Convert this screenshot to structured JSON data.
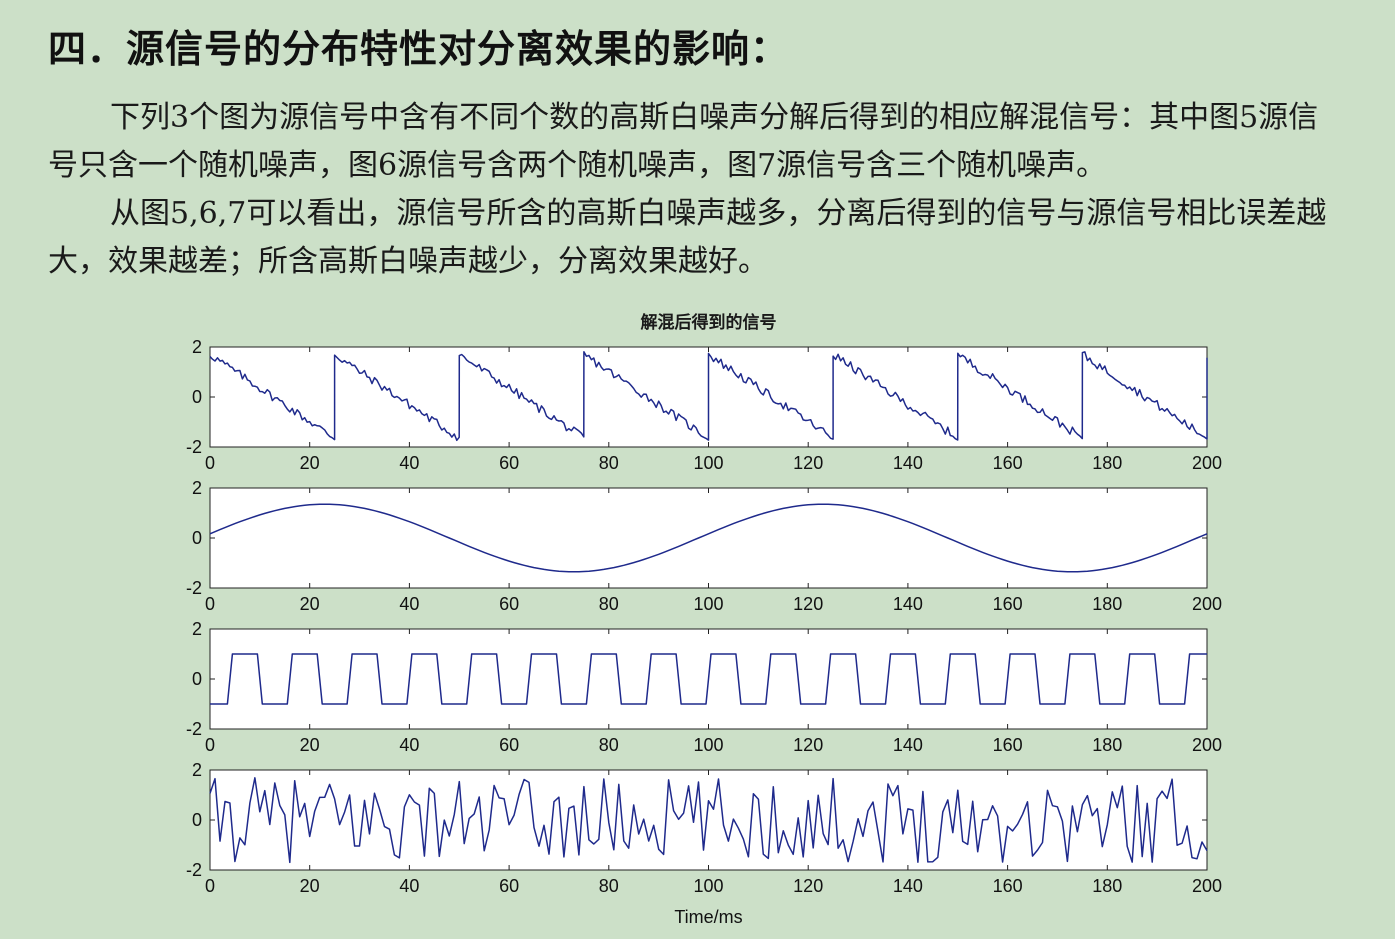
{
  "heading": "四．源信号的分布特性对分离效果的影响：",
  "paragraphs": [
    "下列3个图为源信号中含有不同个数的高斯白噪声分解后得到的相应解混信号：其中图5源信号只含一个随机噪声，图6源信号含两个随机噪声，图7源信号含三个随机噪声。",
    "从图5,6,7可以看出，源信号所含的高斯白噪声越多，分离后得到的信号与源信号相比误差越大，效果越差；所含高斯白噪声越少，分离效果越好。"
  ],
  "colors": {
    "page_background": "#cce0c8",
    "plot_background": "#ffffff",
    "line": "#1f2a8c"
  },
  "chart_data": {
    "type": "line",
    "title": "解混后得到的信号",
    "xlabel": "Time/ms",
    "subplots": [
      {
        "signal": "sawtooth",
        "xlim": [
          0,
          200
        ],
        "ylim": [
          -2,
          2
        ],
        "x_ticks": [
          0,
          20,
          40,
          60,
          80,
          100,
          120,
          140,
          160,
          180,
          200
        ],
        "y_ticks": [
          2,
          0,
          -2
        ],
        "period": 25,
        "max": 1.7,
        "min": -1.65
      },
      {
        "signal": "sine",
        "xlim": [
          0,
          200
        ],
        "ylim": [
          -2,
          2
        ],
        "x_ticks": [
          0,
          20,
          40,
          60,
          80,
          100,
          120,
          140,
          160,
          180,
          200
        ],
        "y_ticks": [
          2,
          0,
          -2
        ],
        "period": 100,
        "amplitude": 1.35
      },
      {
        "signal": "square",
        "xlim": [
          0,
          200
        ],
        "ylim": [
          -2,
          2
        ],
        "x_ticks": [
          0,
          20,
          40,
          60,
          80,
          100,
          120,
          140,
          160,
          180,
          200
        ],
        "y_ticks": [
          2,
          0,
          -2
        ],
        "period": 12,
        "high": 1,
        "low": -1
      },
      {
        "signal": "noise",
        "xlim": [
          0,
          200
        ],
        "ylim": [
          -2,
          2
        ],
        "x_ticks": [
          0,
          20,
          40,
          60,
          80,
          100,
          120,
          140,
          160,
          180,
          200
        ],
        "y_ticks": [
          2,
          0,
          -2
        ],
        "amplitude": 1.7
      }
    ]
  }
}
